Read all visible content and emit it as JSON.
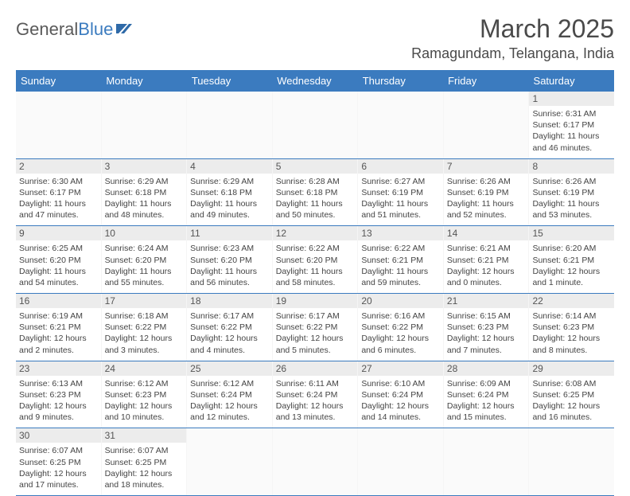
{
  "colors": {
    "header_bg": "#3b7bbf",
    "header_text": "#ffffff",
    "daynum_bg": "#ececec",
    "cell_border": "#3b7bbf",
    "text": "#333333",
    "logo_gray": "#5a5a5a",
    "logo_blue": "#3b7bbf"
  },
  "logo": {
    "part1": "General",
    "part2": "Blue"
  },
  "title": "March 2025",
  "location": "Ramagundam, Telangana, India",
  "day_headers": [
    "Sunday",
    "Monday",
    "Tuesday",
    "Wednesday",
    "Thursday",
    "Friday",
    "Saturday"
  ],
  "weeks": [
    [
      {
        "blank": true
      },
      {
        "blank": true
      },
      {
        "blank": true
      },
      {
        "blank": true
      },
      {
        "blank": true
      },
      {
        "blank": true
      },
      {
        "n": "1",
        "sr": "Sunrise: 6:31 AM",
        "ss": "Sunset: 6:17 PM",
        "dl": "Daylight: 11 hours and 46 minutes."
      }
    ],
    [
      {
        "n": "2",
        "sr": "Sunrise: 6:30 AM",
        "ss": "Sunset: 6:17 PM",
        "dl": "Daylight: 11 hours and 47 minutes."
      },
      {
        "n": "3",
        "sr": "Sunrise: 6:29 AM",
        "ss": "Sunset: 6:18 PM",
        "dl": "Daylight: 11 hours and 48 minutes."
      },
      {
        "n": "4",
        "sr": "Sunrise: 6:29 AM",
        "ss": "Sunset: 6:18 PM",
        "dl": "Daylight: 11 hours and 49 minutes."
      },
      {
        "n": "5",
        "sr": "Sunrise: 6:28 AM",
        "ss": "Sunset: 6:18 PM",
        "dl": "Daylight: 11 hours and 50 minutes."
      },
      {
        "n": "6",
        "sr": "Sunrise: 6:27 AM",
        "ss": "Sunset: 6:19 PM",
        "dl": "Daylight: 11 hours and 51 minutes."
      },
      {
        "n": "7",
        "sr": "Sunrise: 6:26 AM",
        "ss": "Sunset: 6:19 PM",
        "dl": "Daylight: 11 hours and 52 minutes."
      },
      {
        "n": "8",
        "sr": "Sunrise: 6:26 AM",
        "ss": "Sunset: 6:19 PM",
        "dl": "Daylight: 11 hours and 53 minutes."
      }
    ],
    [
      {
        "n": "9",
        "sr": "Sunrise: 6:25 AM",
        "ss": "Sunset: 6:20 PM",
        "dl": "Daylight: 11 hours and 54 minutes."
      },
      {
        "n": "10",
        "sr": "Sunrise: 6:24 AM",
        "ss": "Sunset: 6:20 PM",
        "dl": "Daylight: 11 hours and 55 minutes."
      },
      {
        "n": "11",
        "sr": "Sunrise: 6:23 AM",
        "ss": "Sunset: 6:20 PM",
        "dl": "Daylight: 11 hours and 56 minutes."
      },
      {
        "n": "12",
        "sr": "Sunrise: 6:22 AM",
        "ss": "Sunset: 6:20 PM",
        "dl": "Daylight: 11 hours and 58 minutes."
      },
      {
        "n": "13",
        "sr": "Sunrise: 6:22 AM",
        "ss": "Sunset: 6:21 PM",
        "dl": "Daylight: 11 hours and 59 minutes."
      },
      {
        "n": "14",
        "sr": "Sunrise: 6:21 AM",
        "ss": "Sunset: 6:21 PM",
        "dl": "Daylight: 12 hours and 0 minutes."
      },
      {
        "n": "15",
        "sr": "Sunrise: 6:20 AM",
        "ss": "Sunset: 6:21 PM",
        "dl": "Daylight: 12 hours and 1 minute."
      }
    ],
    [
      {
        "n": "16",
        "sr": "Sunrise: 6:19 AM",
        "ss": "Sunset: 6:21 PM",
        "dl": "Daylight: 12 hours and 2 minutes."
      },
      {
        "n": "17",
        "sr": "Sunrise: 6:18 AM",
        "ss": "Sunset: 6:22 PM",
        "dl": "Daylight: 12 hours and 3 minutes."
      },
      {
        "n": "18",
        "sr": "Sunrise: 6:17 AM",
        "ss": "Sunset: 6:22 PM",
        "dl": "Daylight: 12 hours and 4 minutes."
      },
      {
        "n": "19",
        "sr": "Sunrise: 6:17 AM",
        "ss": "Sunset: 6:22 PM",
        "dl": "Daylight: 12 hours and 5 minutes."
      },
      {
        "n": "20",
        "sr": "Sunrise: 6:16 AM",
        "ss": "Sunset: 6:22 PM",
        "dl": "Daylight: 12 hours and 6 minutes."
      },
      {
        "n": "21",
        "sr": "Sunrise: 6:15 AM",
        "ss": "Sunset: 6:23 PM",
        "dl": "Daylight: 12 hours and 7 minutes."
      },
      {
        "n": "22",
        "sr": "Sunrise: 6:14 AM",
        "ss": "Sunset: 6:23 PM",
        "dl": "Daylight: 12 hours and 8 minutes."
      }
    ],
    [
      {
        "n": "23",
        "sr": "Sunrise: 6:13 AM",
        "ss": "Sunset: 6:23 PM",
        "dl": "Daylight: 12 hours and 9 minutes."
      },
      {
        "n": "24",
        "sr": "Sunrise: 6:12 AM",
        "ss": "Sunset: 6:23 PM",
        "dl": "Daylight: 12 hours and 10 minutes."
      },
      {
        "n": "25",
        "sr": "Sunrise: 6:12 AM",
        "ss": "Sunset: 6:24 PM",
        "dl": "Daylight: 12 hours and 12 minutes."
      },
      {
        "n": "26",
        "sr": "Sunrise: 6:11 AM",
        "ss": "Sunset: 6:24 PM",
        "dl": "Daylight: 12 hours and 13 minutes."
      },
      {
        "n": "27",
        "sr": "Sunrise: 6:10 AM",
        "ss": "Sunset: 6:24 PM",
        "dl": "Daylight: 12 hours and 14 minutes."
      },
      {
        "n": "28",
        "sr": "Sunrise: 6:09 AM",
        "ss": "Sunset: 6:24 PM",
        "dl": "Daylight: 12 hours and 15 minutes."
      },
      {
        "n": "29",
        "sr": "Sunrise: 6:08 AM",
        "ss": "Sunset: 6:25 PM",
        "dl": "Daylight: 12 hours and 16 minutes."
      }
    ],
    [
      {
        "n": "30",
        "sr": "Sunrise: 6:07 AM",
        "ss": "Sunset: 6:25 PM",
        "dl": "Daylight: 12 hours and 17 minutes."
      },
      {
        "n": "31",
        "sr": "Sunrise: 6:07 AM",
        "ss": "Sunset: 6:25 PM",
        "dl": "Daylight: 12 hours and 18 minutes."
      },
      {
        "blank": true
      },
      {
        "blank": true
      },
      {
        "blank": true
      },
      {
        "blank": true
      },
      {
        "blank": true
      }
    ]
  ]
}
